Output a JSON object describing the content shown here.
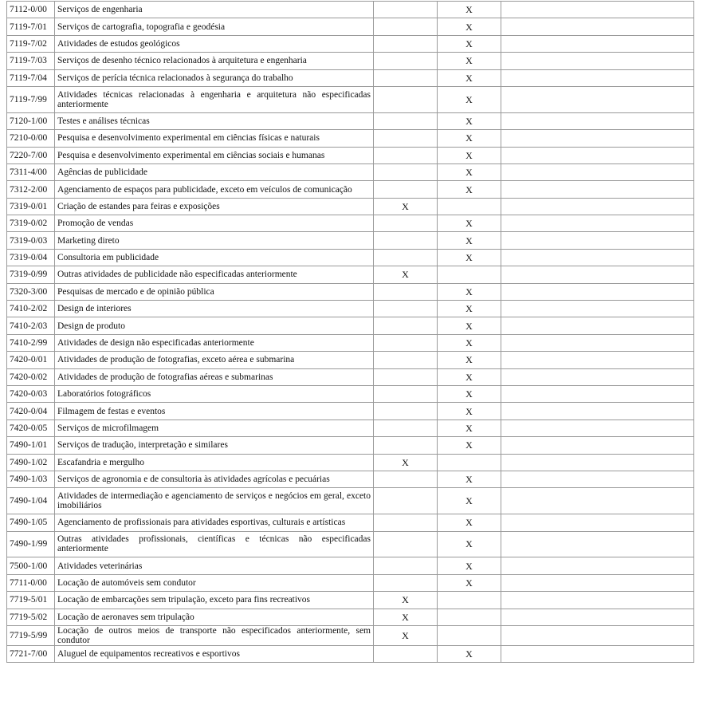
{
  "rows": [
    {
      "code": "7112-0/00",
      "desc": "Serviços de engenharia",
      "c1": "",
      "c2": "X"
    },
    {
      "code": "7119-7/01",
      "desc": "Serviços de cartografia, topografia e geodésia",
      "c1": "",
      "c2": "X"
    },
    {
      "code": "7119-7/02",
      "desc": "Atividades de estudos geológicos",
      "c1": "",
      "c2": "X"
    },
    {
      "code": "7119-7/03",
      "desc": "Serviços de desenho técnico relacionados à arquitetura e engenharia",
      "c1": "",
      "c2": "X"
    },
    {
      "code": "7119-7/04",
      "desc": "Serviços de perícia técnica relacionados à segurança do trabalho",
      "c1": "",
      "c2": "X"
    },
    {
      "code": "7119-7/99",
      "desc": "Atividades técnicas relacionadas à engenharia e arquitetura não especificadas anteriormente",
      "c1": "",
      "c2": "X",
      "tall": true
    },
    {
      "code": "7120-1/00",
      "desc": "Testes e análises técnicas",
      "c1": "",
      "c2": "X"
    },
    {
      "code": "7210-0/00",
      "desc": "Pesquisa e desenvolvimento experimental em ciências físicas e naturais",
      "c1": "",
      "c2": "X"
    },
    {
      "code": "7220-7/00",
      "desc": "Pesquisa e desenvolvimento experimental em ciências sociais e humanas",
      "c1": "",
      "c2": "X"
    },
    {
      "code": "7311-4/00",
      "desc": "Agências de publicidade",
      "c1": "",
      "c2": "X"
    },
    {
      "code": "7312-2/00",
      "desc": "Agenciamento de espaços para publicidade, exceto em veículos de comunicação",
      "c1": "",
      "c2": "X"
    },
    {
      "code": "7319-0/01",
      "desc": "Criação de estandes para feiras e exposições",
      "c1": "X",
      "c2": ""
    },
    {
      "code": "7319-0/02",
      "desc": "Promoção de vendas",
      "c1": "",
      "c2": "X"
    },
    {
      "code": "7319-0/03",
      "desc": "Marketing direto",
      "c1": "",
      "c2": "X"
    },
    {
      "code": "7319-0/04",
      "desc": "Consultoria em publicidade",
      "c1": "",
      "c2": "X"
    },
    {
      "code": "7319-0/99",
      "desc": "Outras atividades de publicidade não especificadas anteriormente",
      "c1": "X",
      "c2": ""
    },
    {
      "code": "7320-3/00",
      "desc": "Pesquisas de mercado e de opinião pública",
      "c1": "",
      "c2": "X"
    },
    {
      "code": "7410-2/02",
      "desc": "Design de interiores",
      "c1": "",
      "c2": "X"
    },
    {
      "code": "7410-2/03",
      "desc": "Design de produto",
      "c1": "",
      "c2": "X"
    },
    {
      "code": "7410-2/99",
      "desc": "Atividades de design não especificadas anteriormente",
      "c1": "",
      "c2": "X"
    },
    {
      "code": "7420-0/01",
      "desc": "Atividades de produção de fotografias, exceto aérea e submarina",
      "c1": "",
      "c2": "X"
    },
    {
      "code": "7420-0/02",
      "desc": "Atividades de produção de fotografias aéreas e submarinas",
      "c1": "",
      "c2": "X"
    },
    {
      "code": "7420-0/03",
      "desc": "Laboratórios fotográficos",
      "c1": "",
      "c2": "X"
    },
    {
      "code": "7420-0/04",
      "desc": "Filmagem de festas e eventos",
      "c1": "",
      "c2": "X"
    },
    {
      "code": "7420-0/05",
      "desc": "Serviços de microfilmagem",
      "c1": "",
      "c2": "X"
    },
    {
      "code": "7490-1/01",
      "desc": "Serviços de tradução, interpretação e similares",
      "c1": "",
      "c2": "X"
    },
    {
      "code": "7490-1/02",
      "desc": "Escafandria e mergulho",
      "c1": "X",
      "c2": ""
    },
    {
      "code": "7490-1/03",
      "desc": "Serviços de agronomia e de consultoria às atividades agrícolas e pecuárias",
      "c1": "",
      "c2": "X"
    },
    {
      "code": "7490-1/04",
      "desc": "Atividades de intermediação e agenciamento de serviços e negócios em geral, exceto imobiliários",
      "c1": "",
      "c2": "X",
      "tall": true
    },
    {
      "code": "7490-1/05",
      "desc": "Agenciamento de profissionais para atividades esportivas, culturais e artísticas",
      "c1": "",
      "c2": "X"
    },
    {
      "code": "7490-1/99",
      "desc": "Outras atividades profissionais, científicas e técnicas não especificadas anteriormente",
      "c1": "",
      "c2": "X",
      "tall": true
    },
    {
      "code": "7500-1/00",
      "desc": "Atividades veterinárias",
      "c1": "",
      "c2": "X"
    },
    {
      "code": "7711-0/00",
      "desc": "Locação de automóveis sem condutor",
      "c1": "",
      "c2": "X"
    },
    {
      "code": "7719-5/01",
      "desc": "Locação de embarcações sem tripulação, exceto para fins recreativos",
      "c1": "X",
      "c2": ""
    },
    {
      "code": "7719-5/02",
      "desc": "Locação de aeronaves sem tripulação",
      "c1": "X",
      "c2": ""
    },
    {
      "code": "7719-5/99",
      "desc": "Locação de outros meios de transporte não especificados anteriormente, sem condutor",
      "c1": "X",
      "c2": ""
    },
    {
      "code": "7721-7/00",
      "desc": "Aluguel de equipamentos recreativos e esportivos",
      "c1": "",
      "c2": "X"
    }
  ]
}
